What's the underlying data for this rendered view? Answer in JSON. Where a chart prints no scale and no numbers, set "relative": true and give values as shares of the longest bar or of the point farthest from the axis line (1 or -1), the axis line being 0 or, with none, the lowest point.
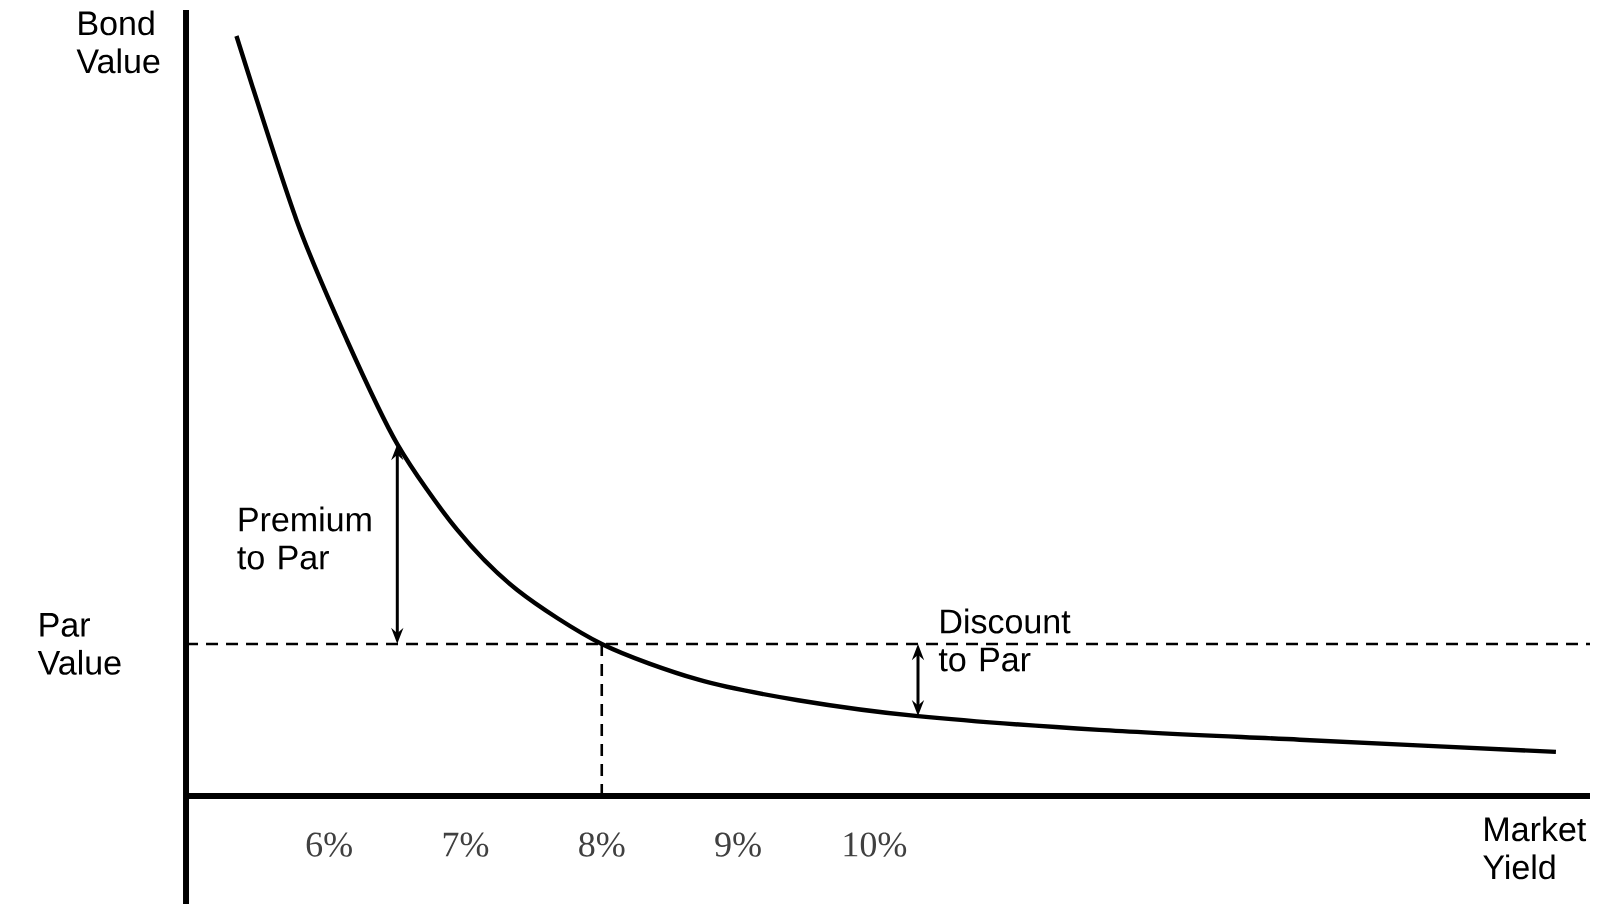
{
  "chart_data": {
    "type": "line",
    "relative": true,
    "xlabel": "Market Yield",
    "ylabel": "Bond Value",
    "x": [
      5.32,
      5.76,
      6.13,
      6.5,
      6.94,
      7.38,
      8.0,
      8.71,
      9.44,
      10.32,
      11.65,
      13.12,
      15.0
    ],
    "values": [
      1.0,
      0.758,
      0.6,
      0.463,
      0.35,
      0.271,
      0.2,
      0.153,
      0.126,
      0.105,
      0.087,
      0.074,
      0.058
    ],
    "color": "#000000",
    "marker": "none",
    "line_style": "solid",
    "xlim": [
      4.95,
      15.25
    ],
    "xticks": [
      {
        "value": 6,
        "label": "6%"
      },
      {
        "value": 7,
        "label": "7%"
      },
      {
        "value": 8,
        "label": "8%"
      },
      {
        "value": 9,
        "label": "9%"
      },
      {
        "value": 10,
        "label": "10%"
      }
    ],
    "ref_lines": [
      {
        "axis": "y",
        "value": 0.2,
        "label": "Par Value",
        "line_style": "dashed",
        "color": "#000000"
      },
      {
        "axis": "x",
        "value": 8,
        "line_style": "dashed",
        "color": "#000000"
      }
    ],
    "annotations": [
      {
        "text": "Premium to Par",
        "x": 6.5,
        "y": 0.463
      },
      {
        "text": "Discount to Par",
        "x": 10.32,
        "y": 0.105
      }
    ]
  }
}
